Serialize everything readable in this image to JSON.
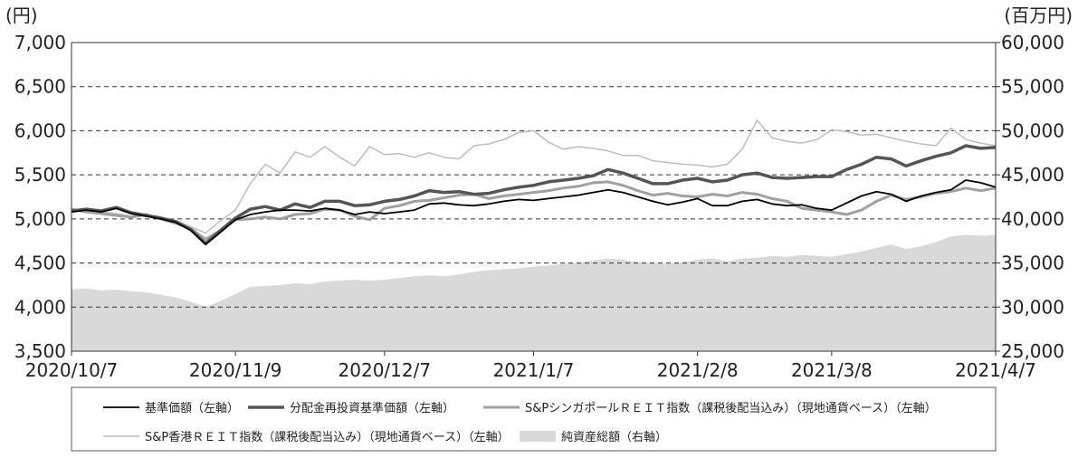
{
  "chart_data": {
    "type": "line",
    "y_label": "(円)",
    "y2_label": "(百万円)",
    "categories": [
      "2020/10/7",
      null,
      null,
      null,
      null,
      null,
      null,
      null,
      null,
      null,
      null,
      "2020/11/9",
      null,
      null,
      null,
      null,
      null,
      null,
      null,
      null,
      null,
      "2020/12/7",
      null,
      null,
      null,
      null,
      null,
      null,
      null,
      null,
      null,
      "2021/1/7",
      null,
      null,
      null,
      null,
      null,
      null,
      null,
      null,
      null,
      null,
      "2021/2/8",
      null,
      null,
      null,
      null,
      null,
      null,
      null,
      null,
      "2021/3/8",
      null,
      null,
      null,
      null,
      null,
      null,
      null,
      null,
      null,
      null,
      "2021/4/7"
    ],
    "ylim": [
      3500,
      7000
    ],
    "yticks": [
      {
        "value": 3500,
        "label": "3,500"
      },
      {
        "value": 4000,
        "label": "4,000"
      },
      {
        "value": 4500,
        "label": "4,500"
      },
      {
        "value": 5000,
        "label": "5,000"
      },
      {
        "value": 5500,
        "label": "5,500"
      },
      {
        "value": 6000,
        "label": "6,000"
      },
      {
        "value": 6500,
        "label": "6,500"
      },
      {
        "value": 7000,
        "label": "7,000"
      }
    ],
    "y2lim": [
      25000,
      60000
    ],
    "y2ticks": [
      {
        "value": 25000,
        "label": "25,000"
      },
      {
        "value": 30000,
        "label": "30,000"
      },
      {
        "value": 35000,
        "label": "35,000"
      },
      {
        "value": 40000,
        "label": "40,000"
      },
      {
        "value": 45000,
        "label": "45,000"
      },
      {
        "value": 50000,
        "label": "50,000"
      },
      {
        "value": 55000,
        "label": "55,000"
      },
      {
        "value": 60000,
        "label": "60,000"
      }
    ],
    "grid": true,
    "series": [
      {
        "name": "純資産総額（右軸）",
        "color": "#d9d9d9",
        "kind": "area",
        "axis": "y2",
        "values": [
          32000,
          32100,
          31900,
          32000,
          31800,
          31700,
          31400,
          31100,
          30600,
          30000,
          30700,
          31500,
          32300,
          32400,
          32500,
          32700,
          32600,
          32900,
          33000,
          33100,
          33000,
          33100,
          33300,
          33500,
          33600,
          33500,
          33700,
          34000,
          34200,
          34300,
          34400,
          34600,
          34700,
          34900,
          35000,
          35300,
          35500,
          35400,
          35100,
          35000,
          34900,
          35100,
          35400,
          35500,
          35200,
          35500,
          35600,
          35800,
          35700,
          35900,
          35800,
          35700,
          36000,
          36300,
          36700,
          37100,
          36600,
          36900,
          37400,
          38000,
          38200,
          38100,
          38200
        ]
      },
      {
        "name": "S&P香港ＲＥＩＴ指数（課税後配当込み）（現地通貨ベース）（左軸）",
        "color": "#bdbdbd",
        "kind": "line",
        "width": 1.5,
        "values": [
          5100,
          5110,
          5080,
          5060,
          5030,
          5050,
          5000,
          4980,
          4910,
          4840,
          4980,
          5100,
          5400,
          5620,
          5520,
          5760,
          5700,
          5820,
          5700,
          5600,
          5820,
          5730,
          5740,
          5700,
          5750,
          5700,
          5680,
          5830,
          5850,
          5900,
          5980,
          6000,
          5870,
          5790,
          5820,
          5800,
          5770,
          5720,
          5720,
          5660,
          5640,
          5620,
          5610,
          5590,
          5620,
          5790,
          6120,
          5920,
          5880,
          5860,
          5900,
          6010,
          5990,
          5950,
          5960,
          5920,
          5880,
          5850,
          5830,
          6030,
          5900,
          5860,
          5830
        ]
      },
      {
        "name": "S&PシンガポールＲＥＩＴ指数（課税後配当込み）（現地通貨ベース）（左軸）",
        "color": "#a0a0a0",
        "kind": "line",
        "width": 3,
        "values": [
          5110,
          5080,
          5060,
          5040,
          5020,
          5050,
          5000,
          4950,
          4890,
          4770,
          4870,
          4990,
          5000,
          5020,
          5000,
          5050,
          5060,
          5110,
          5100,
          5030,
          4990,
          5120,
          5150,
          5200,
          5210,
          5240,
          5270,
          5280,
          5230,
          5260,
          5280,
          5300,
          5320,
          5350,
          5370,
          5410,
          5420,
          5380,
          5320,
          5270,
          5290,
          5260,
          5250,
          5280,
          5260,
          5300,
          5280,
          5230,
          5200,
          5120,
          5100,
          5080,
          5050,
          5100,
          5200,
          5270,
          5220,
          5250,
          5290,
          5310,
          5350,
          5320,
          5350
        ]
      },
      {
        "name": "分配金再投資基準価額（左軸）",
        "color": "#555555",
        "kind": "line",
        "width": 3.5,
        "values": [
          5090,
          5110,
          5090,
          5130,
          5070,
          5040,
          5010,
          4970,
          4880,
          4720,
          4870,
          5010,
          5110,
          5140,
          5100,
          5170,
          5130,
          5200,
          5200,
          5150,
          5160,
          5200,
          5220,
          5260,
          5320,
          5300,
          5310,
          5280,
          5290,
          5330,
          5360,
          5380,
          5420,
          5440,
          5460,
          5490,
          5560,
          5520,
          5460,
          5400,
          5400,
          5440,
          5460,
          5420,
          5440,
          5500,
          5520,
          5470,
          5460,
          5470,
          5480,
          5480,
          5560,
          5620,
          5700,
          5680,
          5600,
          5660,
          5710,
          5750,
          5830,
          5800,
          5810
        ]
      },
      {
        "name": "基準価額（左軸）",
        "color": "#000000",
        "kind": "line",
        "width": 1.8,
        "values": [
          5080,
          5100,
          5080,
          5120,
          5060,
          5030,
          5000,
          4960,
          4870,
          4710,
          4850,
          4990,
          5050,
          5080,
          5100,
          5100,
          5090,
          5120,
          5100,
          5050,
          5080,
          5060,
          5080,
          5100,
          5170,
          5180,
          5160,
          5150,
          5170,
          5200,
          5220,
          5210,
          5230,
          5250,
          5270,
          5300,
          5330,
          5300,
          5250,
          5200,
          5160,
          5190,
          5230,
          5150,
          5150,
          5200,
          5220,
          5170,
          5150,
          5160,
          5120,
          5100,
          5180,
          5260,
          5310,
          5280,
          5200,
          5260,
          5300,
          5330,
          5440,
          5410,
          5360
        ]
      }
    ],
    "legend_order": [
      4,
      3,
      2,
      1,
      0
    ]
  }
}
